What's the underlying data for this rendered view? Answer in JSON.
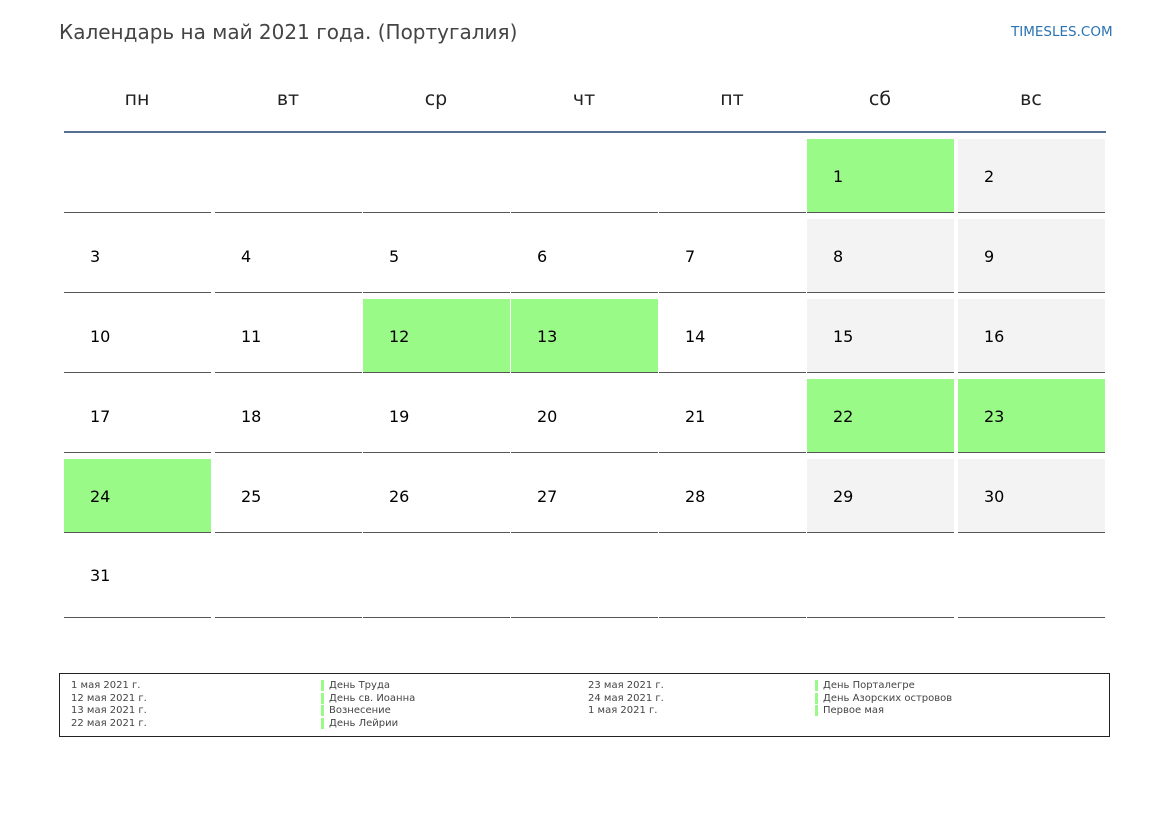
{
  "title": "Календарь на май 2021 года. (Португалия)",
  "site": "TIMESLES.COM",
  "colors": {
    "holiday": "#9afa87",
    "weekend": "#f3f3f3",
    "header_line": "#56708f",
    "site_link": "#2a73b3"
  },
  "weekdays": [
    "пн",
    "вт",
    "ср",
    "чт",
    "пт",
    "сб",
    "вс"
  ],
  "weeks": [
    [
      {
        "day": ""
      },
      {
        "day": ""
      },
      {
        "day": ""
      },
      {
        "day": ""
      },
      {
        "day": ""
      },
      {
        "day": "1",
        "holiday": true
      },
      {
        "day": "2",
        "weekend": true
      }
    ],
    [
      {
        "day": "3"
      },
      {
        "day": "4"
      },
      {
        "day": "5"
      },
      {
        "day": "6"
      },
      {
        "day": "7"
      },
      {
        "day": "8",
        "weekend": true
      },
      {
        "day": "9",
        "weekend": true
      }
    ],
    [
      {
        "day": "10"
      },
      {
        "day": "11"
      },
      {
        "day": "12",
        "holiday": true
      },
      {
        "day": "13",
        "holiday": true
      },
      {
        "day": "14"
      },
      {
        "day": "15",
        "weekend": true
      },
      {
        "day": "16",
        "weekend": true
      }
    ],
    [
      {
        "day": "17"
      },
      {
        "day": "18"
      },
      {
        "day": "19"
      },
      {
        "day": "20"
      },
      {
        "day": "21"
      },
      {
        "day": "22",
        "holiday": true
      },
      {
        "day": "23",
        "holiday": true
      }
    ],
    [
      {
        "day": "24",
        "holiday": true
      },
      {
        "day": "25"
      },
      {
        "day": "26"
      },
      {
        "day": "27"
      },
      {
        "day": "28"
      },
      {
        "day": "29",
        "weekend": true
      },
      {
        "day": "30",
        "weekend": true
      }
    ],
    [
      {
        "day": "31"
      },
      {
        "day": ""
      },
      {
        "day": ""
      },
      {
        "day": ""
      },
      {
        "day": ""
      },
      {
        "day": ""
      },
      {
        "day": ""
      }
    ]
  ],
  "holidays": [
    {
      "date": "1 мая 2021 г.",
      "name": "День Труда"
    },
    {
      "date": "12 мая 2021 г.",
      "name": "День св. Иоанна"
    },
    {
      "date": "13 мая 2021 г.",
      "name": "Вознесение"
    },
    {
      "date": "22 мая 2021 г.",
      "name": "День Лейрии"
    },
    {
      "date": "23 мая 2021 г.",
      "name": "День Порталегре"
    },
    {
      "date": "24 мая 2021 г.",
      "name": "День Азорских островов"
    },
    {
      "date": "1 мая 2021 г.",
      "name": "Первое мая"
    }
  ]
}
